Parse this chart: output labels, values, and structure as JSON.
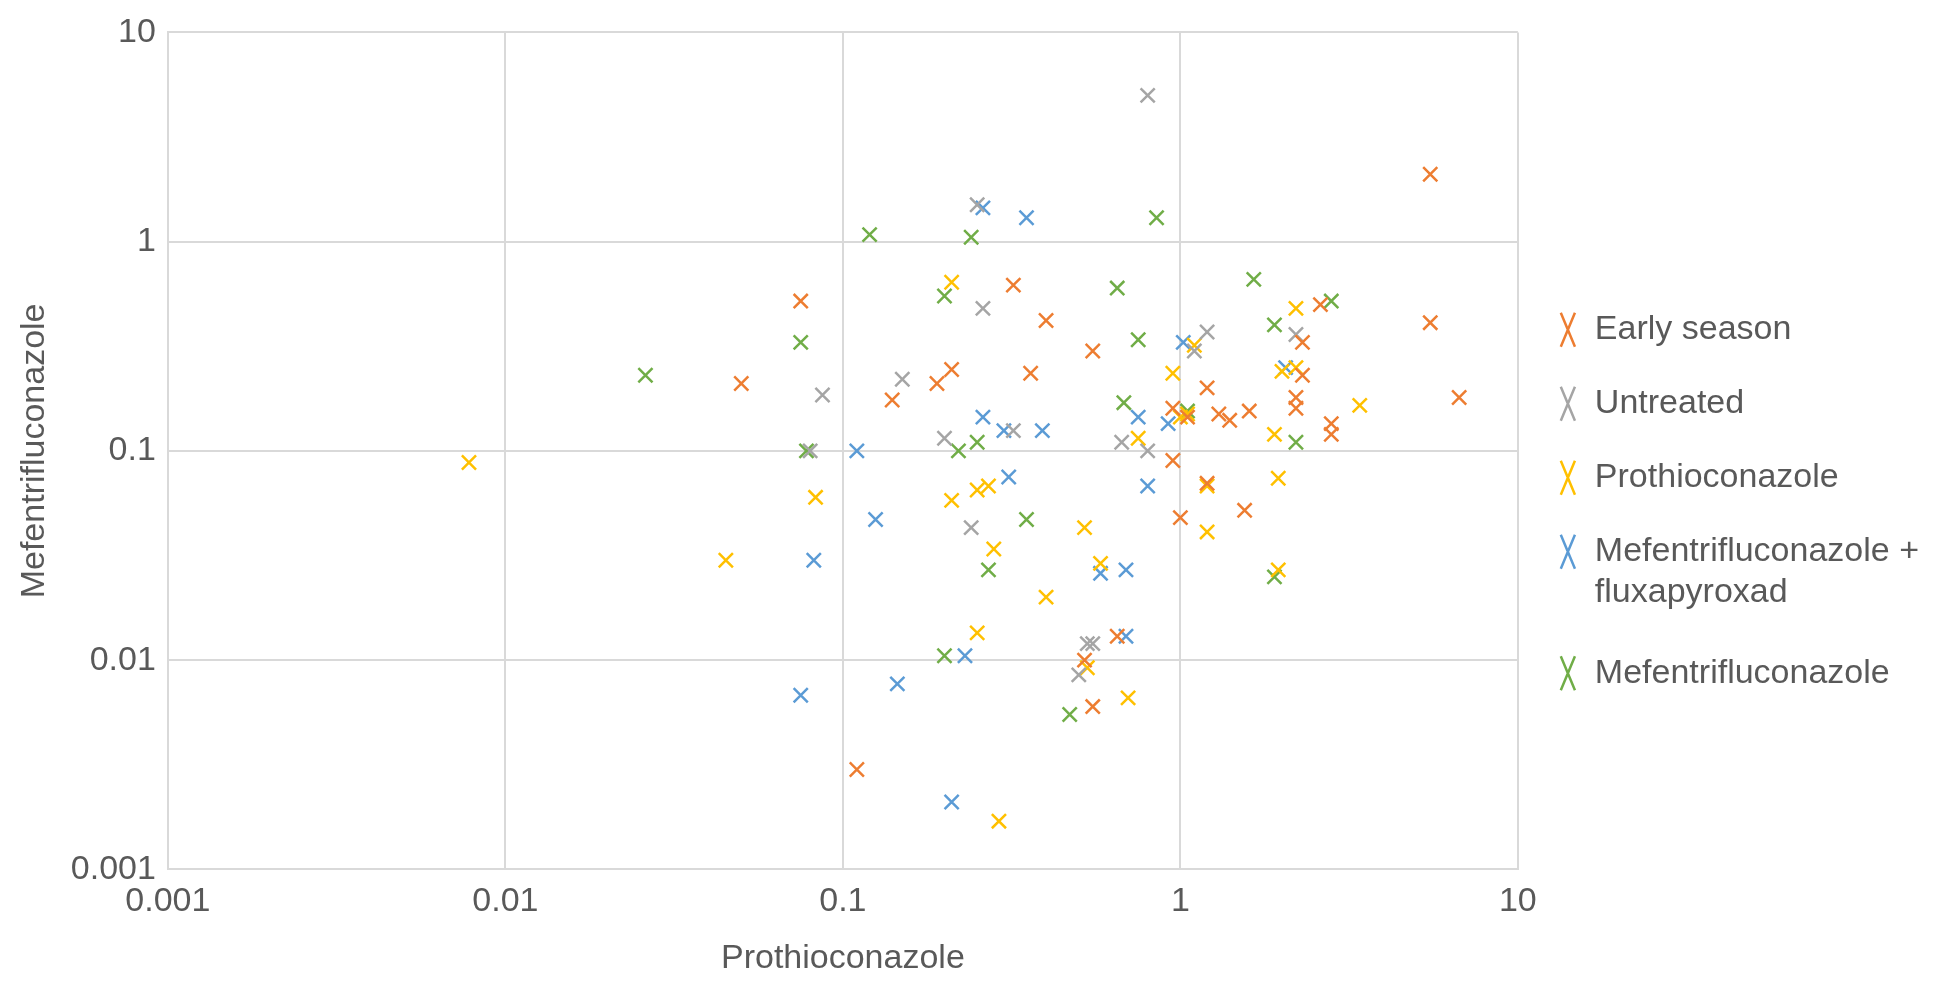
{
  "chart_data": {
    "type": "scatter",
    "xlabel": "Prothioconazole",
    "ylabel": "Mefentrifluconazole",
    "log": "xy",
    "grid": true,
    "legend": "right",
    "marker": "cross",
    "xlim": [
      0.001,
      10
    ],
    "xticks": [
      0.001,
      0.01,
      0.1,
      1,
      10
    ],
    "ylim": [
      0.001,
      10
    ],
    "yticks": [
      0.001,
      0.01,
      0.1,
      1,
      10
    ],
    "series": [
      {
        "name": "Early season",
        "color": "#ed7d31",
        "x": [
          0.075,
          0.05,
          0.14,
          0.19,
          0.21,
          0.32,
          0.36,
          0.4,
          0.55,
          0.95,
          0.95,
          1.2,
          1.2,
          1.0,
          1.3,
          1.4,
          1.6,
          1.55,
          2.2,
          2.2,
          2.3,
          2.3,
          2.6,
          2.8,
          2.8,
          5.5,
          5.5,
          6.7,
          0.11,
          0.55,
          0.52,
          0.65,
          1.05
        ],
        "values": [
          0.52,
          0.21,
          0.175,
          0.21,
          0.245,
          0.62,
          0.235,
          0.42,
          0.3,
          0.16,
          0.09,
          0.2,
          0.07,
          0.048,
          0.15,
          0.14,
          0.155,
          0.052,
          0.18,
          0.16,
          0.33,
          0.23,
          0.5,
          0.135,
          0.12,
          2.1,
          0.41,
          0.18,
          0.003,
          0.006,
          0.01,
          0.013,
          0.145
        ]
      },
      {
        "name": "Untreated",
        "color": "#a5a5a5",
        "x": [
          0.8,
          0.25,
          0.26,
          0.15,
          0.087,
          0.2,
          0.32,
          0.24,
          0.67,
          0.8,
          1.1,
          1.2,
          2.2,
          0.08,
          0.53,
          0.5,
          0.55
        ],
        "values": [
          5,
          1.5,
          0.48,
          0.22,
          0.185,
          0.115,
          0.125,
          0.043,
          0.11,
          0.1,
          0.3,
          0.37,
          0.36,
          0.1,
          0.012,
          0.0085,
          0.012
        ]
      },
      {
        "name": "Prothioconazole",
        "color": "#ffc000",
        "x": [
          0.0078,
          0.045,
          0.083,
          0.21,
          0.21,
          0.25,
          0.27,
          0.28,
          0.25,
          0.29,
          0.4,
          0.52,
          0.58,
          0.53,
          0.7,
          0.75,
          0.95,
          1.0,
          1.05,
          1.2,
          1.2,
          1.9,
          1.95,
          1.95,
          2.2,
          2.0,
          2.2,
          3.4,
          1.1
        ],
        "values": [
          0.088,
          0.03,
          0.06,
          0.64,
          0.058,
          0.065,
          0.068,
          0.034,
          0.0135,
          0.0017,
          0.02,
          0.043,
          0.029,
          0.0092,
          0.0066,
          0.115,
          0.235,
          0.145,
          0.15,
          0.068,
          0.041,
          0.12,
          0.074,
          0.027,
          0.48,
          0.24,
          0.25,
          0.165,
          0.32
        ]
      },
      {
        "name": "Mefentrifluconazole + fluxapyroxad",
        "color": "#5b9bd5",
        "x": [
          0.26,
          0.35,
          0.11,
          0.125,
          0.082,
          0.075,
          0.145,
          0.21,
          0.23,
          0.26,
          0.3,
          0.31,
          0.39,
          0.58,
          0.69,
          0.69,
          0.75,
          0.8,
          0.92,
          1.02,
          2.05
        ],
        "values": [
          1.45,
          1.3,
          0.1,
          0.047,
          0.03,
          0.0068,
          0.0077,
          0.0021,
          0.0105,
          0.145,
          0.125,
          0.075,
          0.125,
          0.026,
          0.027,
          0.013,
          0.145,
          0.068,
          0.135,
          0.33,
          0.25
        ]
      },
      {
        "name": "Mefentrifluconazole",
        "color": "#70ad47",
        "x": [
          0.026,
          0.075,
          0.078,
          0.12,
          0.2,
          0.24,
          0.22,
          0.25,
          0.27,
          0.35,
          0.2,
          0.47,
          0.65,
          0.68,
          0.75,
          0.85,
          1.05,
          1.65,
          1.9,
          2.2,
          2.8,
          1.9
        ],
        "values": [
          0.23,
          0.33,
          0.1,
          1.08,
          0.55,
          1.05,
          0.1,
          0.11,
          0.027,
          0.047,
          0.0105,
          0.0055,
          0.6,
          0.17,
          0.34,
          1.3,
          0.155,
          0.66,
          0.4,
          0.11,
          0.52,
          0.025
        ]
      }
    ]
  }
}
